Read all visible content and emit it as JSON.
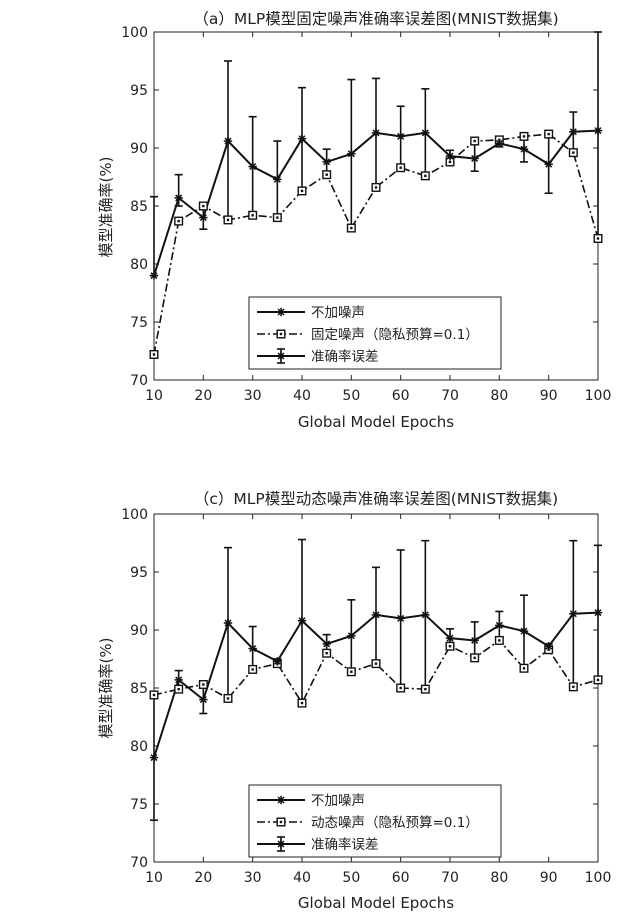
{
  "chart_data": [
    {
      "type": "line",
      "title": "（a）MLP模型固定噪声准确率误差图(MNIST数据集)",
      "xlabel": "Global Model Epochs",
      "ylabel": "模型准确率(%)",
      "xlim": [
        10,
        100
      ],
      "ylim": [
        70,
        100
      ],
      "x_ticks": [
        10,
        20,
        30,
        40,
        50,
        60,
        70,
        80,
        90,
        100
      ],
      "y_ticks": [
        70,
        75,
        80,
        85,
        90,
        95,
        100
      ],
      "grid": false,
      "legend_position": "bottom-center",
      "x": [
        10,
        15,
        20,
        25,
        30,
        35,
        40,
        45,
        50,
        55,
        60,
        65,
        70,
        75,
        80,
        85,
        90,
        95,
        100
      ],
      "series": [
        {
          "name": "不加噪声",
          "style": "solid",
          "marker": "asterisk",
          "values": [
            79.0,
            85.7,
            84.0,
            90.6,
            88.4,
            87.3,
            90.8,
            88.8,
            89.5,
            91.3,
            91.0,
            91.3,
            89.3,
            89.1,
            90.4,
            89.9,
            88.6,
            91.4,
            91.5
          ],
          "error_lower": [
            79.0,
            85.0,
            83.0,
            83.7,
            84.0,
            84.0,
            86.3,
            87.7,
            83.1,
            86.6,
            88.3,
            87.6,
            88.8,
            88.0,
            90.1,
            88.8,
            86.1,
            89.6,
            82.2
          ],
          "error_upper": [
            85.8,
            87.7,
            85.1,
            97.5,
            92.7,
            90.6,
            95.2,
            89.9,
            95.9,
            96.0,
            93.6,
            95.1,
            89.8,
            90.5,
            90.7,
            91.0,
            91.2,
            93.1,
            100.0
          ]
        },
        {
          "name": "固定噪声（隐私预算=0.1）",
          "style": "dashdot",
          "marker": "square",
          "values": [
            72.2,
            83.7,
            85.0,
            83.8,
            84.2,
            84.0,
            86.3,
            87.7,
            83.1,
            86.6,
            88.3,
            87.6,
            88.8,
            90.6,
            90.7,
            91.0,
            91.2,
            89.6,
            82.2
          ]
        }
      ],
      "legend": [
        "不加噪声",
        "固定噪声（隐私预算=0.1）",
        "准确率误差"
      ]
    },
    {
      "type": "line",
      "title": "（c）MLP模型动态噪声准确率误差图(MNIST数据集)",
      "xlabel": "Global Model Epochs",
      "ylabel": "模型准确率(%)",
      "xlim": [
        10,
        100
      ],
      "ylim": [
        70,
        100
      ],
      "x_ticks": [
        10,
        20,
        30,
        40,
        50,
        60,
        70,
        80,
        90,
        100
      ],
      "y_ticks": [
        70,
        75,
        80,
        85,
        90,
        95,
        100
      ],
      "grid": false,
      "legend_position": "bottom-center",
      "x": [
        10,
        15,
        20,
        25,
        30,
        35,
        40,
        45,
        50,
        55,
        60,
        65,
        70,
        75,
        80,
        85,
        90,
        95,
        100
      ],
      "series": [
        {
          "name": "不加噪声",
          "style": "solid",
          "marker": "asterisk",
          "values": [
            79.0,
            85.7,
            84.0,
            90.6,
            88.4,
            87.3,
            90.8,
            88.8,
            89.5,
            91.3,
            91.0,
            91.3,
            89.3,
            89.1,
            90.4,
            89.9,
            88.6,
            91.4,
            91.5
          ],
          "error_lower": [
            73.6,
            84.9,
            82.8,
            84.1,
            86.6,
            87.1,
            83.7,
            88.0,
            86.4,
            87.1,
            85.0,
            84.9,
            88.6,
            87.6,
            89.1,
            86.7,
            88.3,
            85.1,
            85.7
          ],
          "error_upper": [
            84.4,
            86.5,
            85.3,
            97.1,
            90.3,
            87.5,
            97.8,
            89.6,
            92.6,
            95.4,
            96.9,
            97.7,
            90.1,
            90.7,
            91.6,
            93.0,
            88.8,
            97.7,
            97.3
          ]
        },
        {
          "name": "动态噪声（隐私预算=0.1）",
          "style": "dashdot",
          "marker": "square",
          "values": [
            84.4,
            84.9,
            85.3,
            84.1,
            86.6,
            87.1,
            83.7,
            88.0,
            86.4,
            87.1,
            85.0,
            84.9,
            88.6,
            87.6,
            89.1,
            86.7,
            88.3,
            85.1,
            85.7
          ]
        }
      ],
      "legend": [
        "不加噪声",
        "动态噪声（隐私预算=0.1）",
        "准确率误差"
      ]
    }
  ]
}
